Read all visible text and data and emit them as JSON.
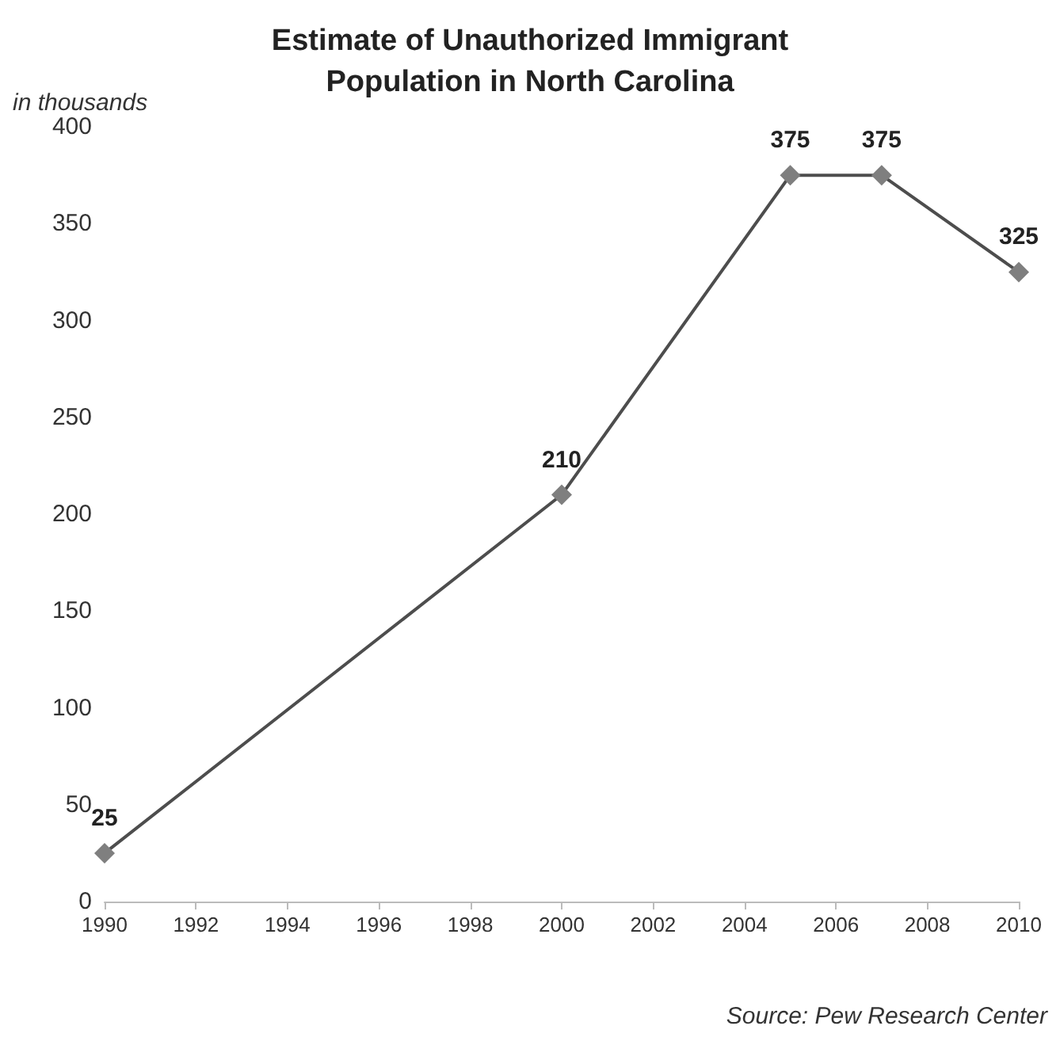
{
  "chart_data": {
    "type": "line",
    "title": "Estimate of Unauthorized Immigrant\nPopulation in North Carolina",
    "ylabel": "in thousands",
    "x": [
      1990,
      2000,
      2005,
      2007,
      2010
    ],
    "series": [
      {
        "color": "#7f7f7f",
        "values": [
          25,
          210,
          375,
          375,
          325
        ]
      }
    ],
    "xlim": [
      1990,
      2010
    ],
    "xticks": [
      1990,
      1992,
      1994,
      1996,
      1998,
      2000,
      2002,
      2004,
      2006,
      2008,
      2010
    ],
    "ylim": [
      0,
      400
    ],
    "yticks": [
      0,
      50,
      100,
      150,
      200,
      250,
      300,
      350,
      400
    ],
    "data_labels": true,
    "marker": "diamond",
    "line_style": "solid",
    "grid": false,
    "annotations": [
      "Source: Pew Research Center"
    ]
  }
}
